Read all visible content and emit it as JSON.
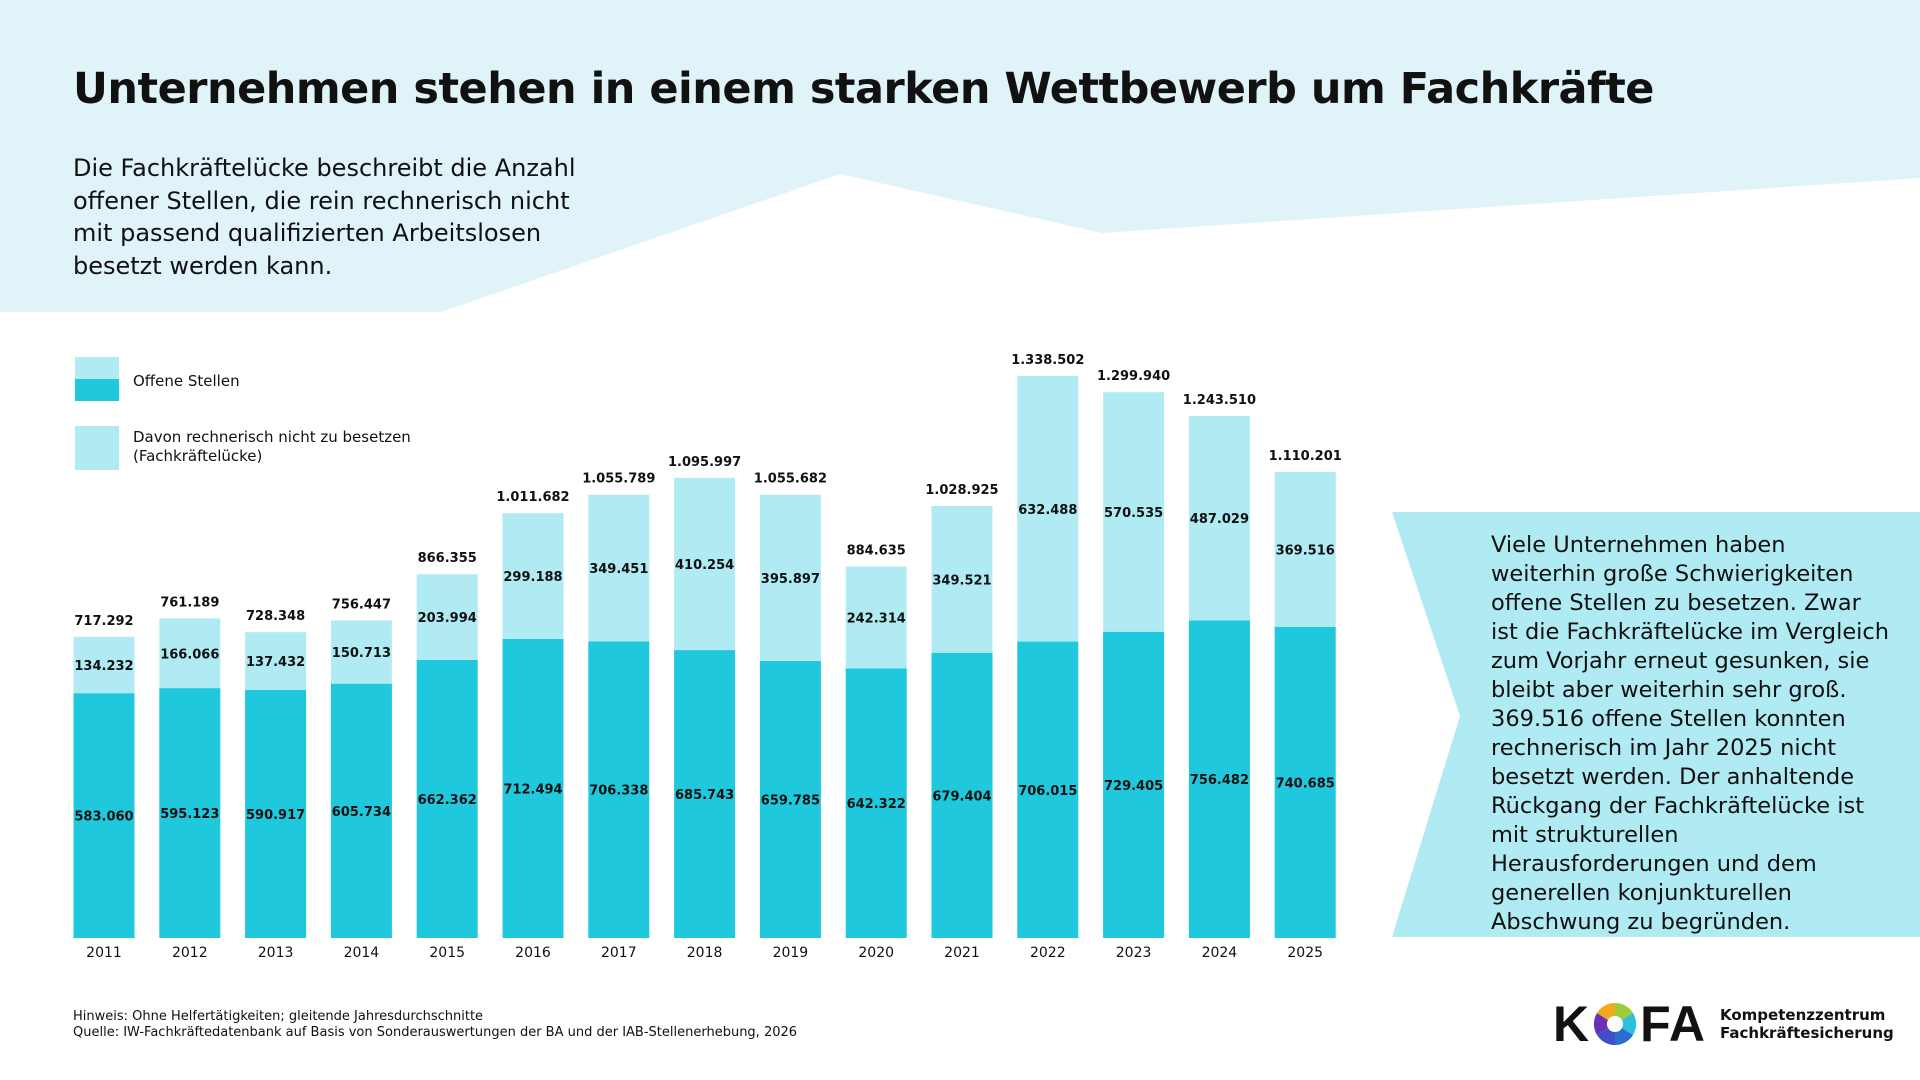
{
  "header": {
    "title": "Unternehmen stehen in einem starken Wettbewerb um Fachkräfte",
    "subtitle": "Die Fachkräftelücke beschreibt die Anzahl offener Stellen, die rein rechnerisch nicht mit passend qualifizierten Arbeitslosen besetzt werden kann."
  },
  "legend": {
    "offene": "Offene Stellen",
    "luecke_1": "Davon rechnerisch nicht zu besetzen",
    "luecke_2": "(Fachkräftelücke)"
  },
  "colors": {
    "offene": "#1fc8dc",
    "luecke": "#b0ebf3",
    "background_band": "#dff3f8"
  },
  "chart_data": {
    "type": "bar",
    "stacked": true,
    "categories": [
      "2011",
      "2012",
      "2013",
      "2014",
      "2015",
      "2016",
      "2017",
      "2018",
      "2019",
      "2020",
      "2021",
      "2022",
      "2023",
      "2024",
      "2025"
    ],
    "series": [
      {
        "name": "Offene Stellen",
        "values": [
          "583.060",
          "595.123",
          "590.917",
          "605.734",
          "662.362",
          "712.494",
          "706.338",
          "685.743",
          "659.785",
          "642.322",
          "679.404",
          "706.015",
          "729.405",
          "756.482",
          "740.685"
        ]
      },
      {
        "name": "Davon rechnerisch nicht zu besetzen (Fachkräftelücke)",
        "values": [
          "134.232",
          "166.066",
          "137.432",
          "150.713",
          "203.994",
          "299.188",
          "349.451",
          "410.254",
          "395.897",
          "242.314",
          "349.521",
          "632.488",
          "570.535",
          "487.029",
          "369.516"
        ]
      }
    ],
    "totals": [
      "717.292",
      "761.189",
      "728.348",
      "756.447",
      "866.355",
      "1.011.682",
      "1.055.789",
      "1.095.997",
      "1.055.682",
      "884.635",
      "1.028.925",
      "1.338.502",
      "1.299.940",
      "1.243.510",
      "1.110.201"
    ],
    "title": "",
    "xlabel": "",
    "ylabel": "",
    "grid": false,
    "legend_position": "top-left"
  },
  "note": "Viele Unternehmen haben weiterhin große Schwierigkeiten offene Stellen zu besetzen. Zwar ist die Fachkräftelücke im Vergleich zum Vorjahr erneut gesunken, sie bleibt aber weiterhin sehr groß. 369.516 offene Stellen konnten rechnerisch im Jahr 2025 nicht besetzt werden. Der anhaltende Rückgang der Fachkräftelücke ist mit strukturellen Herausforderungen und dem generellen konjunkturellen Abschwung zu begründen.",
  "footer": {
    "hinweis": "Hinweis: Ohne Helfertätigkeiten; gleitende Jahresdurchschnitte",
    "quelle": "Quelle: IW-Fachkräftedatenbank auf Basis von Sonderauswertungen der BA und der IAB-Stellenerhebung, 2026"
  },
  "logo": {
    "word": "KOFA",
    "line1": "Kompetenzzentrum",
    "line2": "Fachkräftesicherung"
  }
}
